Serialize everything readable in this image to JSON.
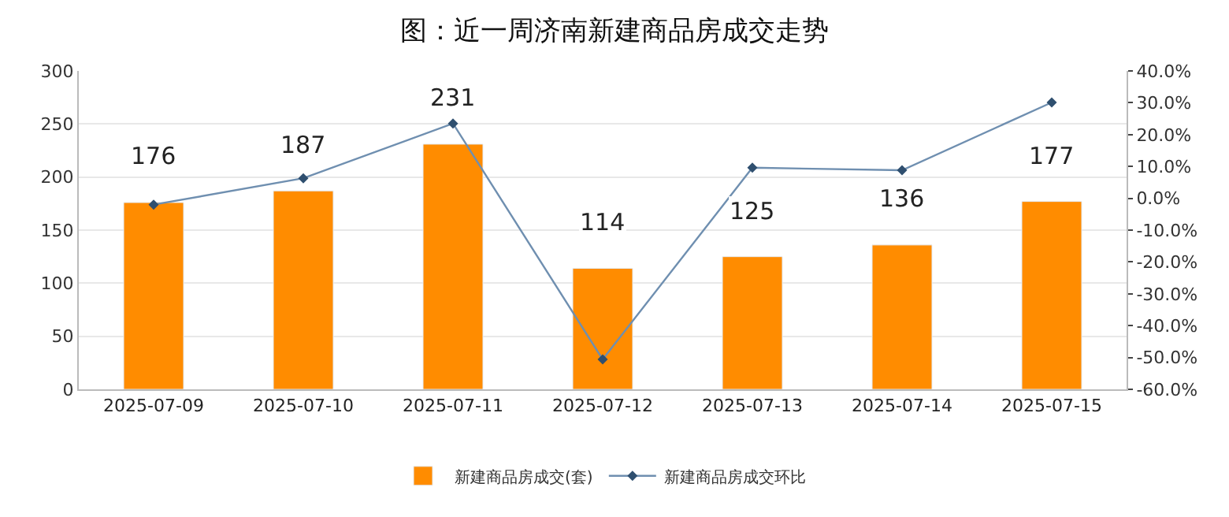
{
  "chart_data": {
    "type": "bar",
    "title": "图：近一周济南新建商品房成交走势",
    "categories": [
      "2025-07-09",
      "2025-07-10",
      "2025-07-11",
      "2025-07-12",
      "2025-07-13",
      "2025-07-14",
      "2025-07-15"
    ],
    "series": [
      {
        "name": "新建商品房成交(套)",
        "color": "#ff8c00",
        "values": [
          176,
          187,
          231,
          114,
          125,
          136,
          177
        ],
        "data_labels": true
      },
      {
        "name": "新建商品房成交环比",
        "type": "line",
        "axis": "y2",
        "color": "#6f8fb0",
        "marker": "diamond",
        "values": [
          -2,
          6.3,
          23.5,
          -50.6,
          9.6,
          8.8,
          30.1
        ]
      }
    ],
    "ylim": [
      0,
      300
    ],
    "yticks": [
      0,
      50,
      100,
      150,
      200,
      250,
      300
    ],
    "y2lim": [
      -60,
      40
    ],
    "y2ticks": [
      {
        "value": -60,
        "label": "-60.0%"
      },
      {
        "value": -50,
        "label": "-50.0%"
      },
      {
        "value": -40,
        "label": "-40.0%"
      },
      {
        "value": -30,
        "label": "-30.0%"
      },
      {
        "value": -20,
        "label": "-20.0%"
      },
      {
        "value": -10,
        "label": "-10.0%"
      },
      {
        "value": 0,
        "label": "0.0%"
      },
      {
        "value": 10,
        "label": "10.0%"
      },
      {
        "value": 20,
        "label": "20.0%"
      },
      {
        "value": 30,
        "label": "30.0%"
      },
      {
        "value": 40,
        "label": "40.0%"
      }
    ],
    "grid": "y",
    "legend": "bottom"
  }
}
